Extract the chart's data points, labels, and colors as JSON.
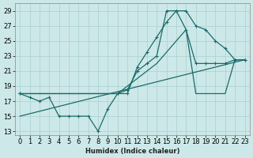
{
  "xlabel": "Humidex (Indice chaleur)",
  "bg_color": "#cde8e8",
  "grid_color": "#aacfcf",
  "line_color": "#1a6b6b",
  "xlim": [
    -0.5,
    23.5
  ],
  "ylim": [
    12.5,
    30.0
  ],
  "yticks": [
    13,
    15,
    17,
    19,
    21,
    23,
    25,
    27,
    29
  ],
  "xticks": [
    0,
    1,
    2,
    3,
    4,
    5,
    6,
    7,
    8,
    9,
    10,
    11,
    12,
    13,
    14,
    15,
    16,
    17,
    18,
    19,
    20,
    21,
    22,
    23
  ],
  "line1_x": [
    0,
    1,
    2,
    3,
    4,
    5,
    6,
    7,
    8,
    9,
    10,
    11,
    12,
    13,
    14,
    15,
    16,
    17,
    18,
    19,
    20,
    21,
    22,
    23
  ],
  "line1_y": [
    18,
    17.5,
    17,
    17.5,
    15,
    15,
    15,
    15,
    13,
    16,
    18,
    18,
    21.5,
    23.5,
    25.5,
    27.5,
    29,
    29,
    27,
    26.5,
    25,
    24,
    22.5,
    22.5
  ],
  "line2_x": [
    0,
    10,
    11,
    12,
    13,
    14,
    15,
    16,
    17,
    18,
    19,
    20,
    21,
    22,
    23
  ],
  "line2_y": [
    18,
    18,
    18.5,
    21,
    22,
    23,
    29,
    29,
    26.5,
    22,
    22,
    22,
    22,
    22.5,
    22.5
  ],
  "line3_x": [
    0,
    10,
    14,
    17,
    18,
    19,
    20,
    21,
    22,
    23
  ],
  "line3_y": [
    18,
    18,
    22,
    26.5,
    18,
    18,
    18,
    18,
    22.5,
    22.5
  ],
  "line4_x": [
    0,
    23
  ],
  "line4_y": [
    15,
    22.5
  ],
  "font_size": 6,
  "marker_size": 3
}
